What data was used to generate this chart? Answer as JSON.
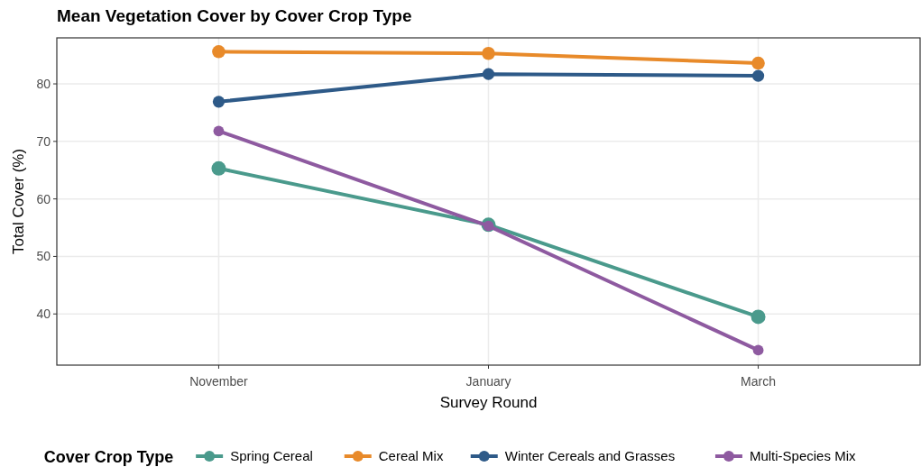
{
  "chart_data": {
    "type": "line",
    "title": "Mean Vegetation Cover by Cover Crop Type",
    "xlabel": "Survey Round",
    "ylabel": "Total Cover (%)",
    "legend_title": "Cover Crop Type",
    "categories": [
      "November",
      "January",
      "March"
    ],
    "series": [
      {
        "name": "Spring Cereal",
        "color": "#4a9a8c",
        "values": [
          65.3,
          55.5,
          39.5
        ]
      },
      {
        "name": "Cereal Mix",
        "color": "#e88a2a",
        "values": [
          85.6,
          85.3,
          83.6
        ]
      },
      {
        "name": "Winter Cereals and Grasses",
        "color": "#2e5a88",
        "values": [
          76.9,
          81.7,
          81.4
        ]
      },
      {
        "name": "Multi-Species Mix",
        "color": "#8e5aa0",
        "values": [
          71.8,
          55.3,
          33.7
        ]
      }
    ],
    "ylim": [
      31.1,
      88.0
    ],
    "yticks": [
      40,
      50,
      60,
      70,
      80
    ],
    "grid": true,
    "legend": "bottom",
    "marker": "circle",
    "line_style": "solid"
  }
}
